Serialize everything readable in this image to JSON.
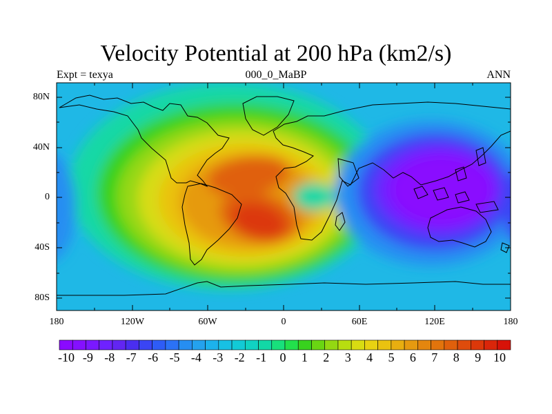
{
  "title": "Velocity Potential at 200 hPa (km2/s)",
  "subtitle_left": "Expt = texya",
  "subtitle_center": "000_0_MaBP",
  "subtitle_right": "ANN",
  "lat_labels": [
    "80N",
    "40N",
    "0",
    "40S",
    "80S"
  ],
  "lon_labels": [
    "180",
    "120W",
    "60W",
    "0",
    "60E",
    "120E",
    "180"
  ],
  "colorbar_labels": [
    "-10",
    "-9",
    "-8",
    "-7",
    "-6",
    "-5",
    "-4",
    "-3",
    "-2",
    "-1",
    "0",
    "1",
    "2",
    "3",
    "4",
    "5",
    "6",
    "7",
    "8",
    "9",
    "10"
  ],
  "colorbar_colors": [
    "#8a0aff",
    "#8410ff",
    "#7a18ff",
    "#6e22ff",
    "#6226f2",
    "#4a2ef0",
    "#3a45f4",
    "#2e5cf6",
    "#2b72f6",
    "#268ef2",
    "#24a2ee",
    "#1cb2ec",
    "#18c0e4",
    "#12cad6",
    "#10d2c2",
    "#12d8a6",
    "#18e07c",
    "#22e04c",
    "#38d21e",
    "#6ad612",
    "#94d812",
    "#b8de10",
    "#d8dc12",
    "#e8d212",
    "#eac210",
    "#e8ae10",
    "#e69a10",
    "#e4860e",
    "#e2740c",
    "#e0600c",
    "#de4c0c",
    "#dc380a",
    "#da260a",
    "#d81208"
  ],
  "field_colors": {
    "background": "#1fb8e6",
    "neg6": "#3a45f4",
    "neg8": "#7a18ff",
    "neg10": "#8a0aff",
    "neg3": "#268ef2",
    "neg1": "#18c0e4",
    "pos1": "#12d8a6",
    "pos2": "#38d21e",
    "pos4": "#b8de10",
    "pos5": "#e8d212",
    "pos7": "#e69a10",
    "pos8": "#e0600c",
    "pos10": "#dc380a"
  }
}
